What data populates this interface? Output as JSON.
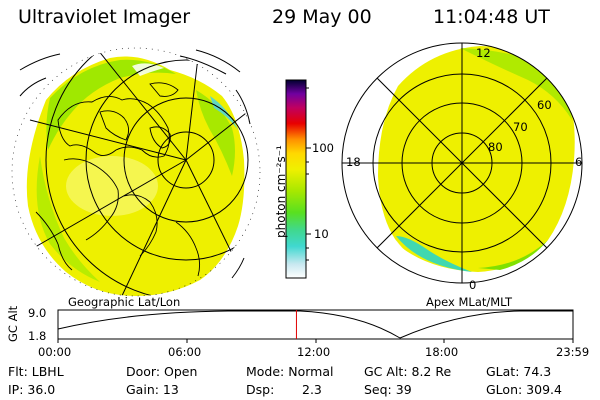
{
  "header": {
    "instrument": "Ultraviolet Imager",
    "date": "29 May 00",
    "time": "11:04:48 UT"
  },
  "geo_map": {
    "caption": "Geographic Lat/Lon"
  },
  "apex_map": {
    "caption": "Apex MLat/MLT",
    "mlt_labels": [
      "12",
      "18",
      "6",
      "0"
    ],
    "mlat_labels": [
      "60",
      "70",
      "80"
    ]
  },
  "colorbar": {
    "unit_label": "photon cm⁻²s⁻¹",
    "ticks": [
      {
        "label": "100",
        "value": 100
      },
      {
        "label": "10",
        "value": 10
      }
    ]
  },
  "alt_plot": {
    "ylabel": "GC Alt",
    "yticks": [
      "9.0",
      "1.8"
    ],
    "xticks": [
      "00:00",
      "06:00",
      "12:00",
      "18:00",
      "23:59"
    ],
    "current_time_fraction": 0.463
  },
  "status": {
    "flt": "Flt: LBHL",
    "ip": "IP: 36.0",
    "door": "Door: Open",
    "gain": "Gain: 13",
    "mode": "Mode: Normal",
    "dsp_label": "Dsp:",
    "dsp_value": "2.3",
    "gc_alt": "GC Alt: 8.2 Re",
    "seq": "Seq: 39",
    "glat": "GLat: 74.3",
    "glon": "GLon: 309.4"
  },
  "colors": {
    "aurora_yellow": "#f0f000",
    "aurora_green": "#98e800",
    "cyan": "#30d8d0"
  }
}
